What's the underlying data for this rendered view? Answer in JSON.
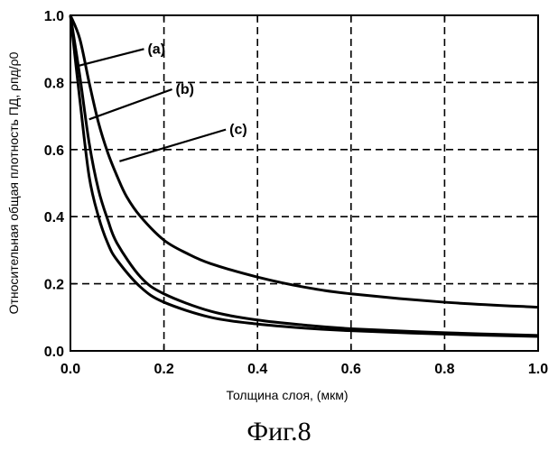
{
  "chart_data": {
    "type": "line",
    "title": "",
    "xlabel": "Толщина слоя, (мкм)",
    "ylabel": "Относительная общая плотность ПД, ρпд/ρ0",
    "xlim": [
      0.0,
      1.0
    ],
    "ylim": [
      0.0,
      1.0
    ],
    "xticks": [
      "0.0",
      "0.2",
      "0.4",
      "0.6",
      "0.8",
      "1.0"
    ],
    "yticks": [
      "0.0",
      "0.2",
      "0.4",
      "0.6",
      "0.8",
      "1.0"
    ],
    "grid": true,
    "series": [
      {
        "name": "(a)",
        "x": [
          0.0,
          0.02,
          0.04,
          0.06,
          0.08,
          0.1,
          0.15,
          0.2,
          0.3,
          0.4,
          0.5,
          0.6,
          0.8,
          1.0
        ],
        "y": [
          1.0,
          0.75,
          0.52,
          0.4,
          0.32,
          0.27,
          0.19,
          0.145,
          0.1,
          0.08,
          0.068,
          0.06,
          0.05,
          0.043
        ]
      },
      {
        "name": "(b)",
        "x": [
          0.0,
          0.02,
          0.04,
          0.06,
          0.08,
          0.1,
          0.15,
          0.2,
          0.3,
          0.4,
          0.5,
          0.6,
          0.8,
          1.0
        ],
        "y": [
          1.0,
          0.82,
          0.62,
          0.48,
          0.39,
          0.32,
          0.22,
          0.17,
          0.118,
          0.092,
          0.077,
          0.066,
          0.054,
          0.046
        ]
      },
      {
        "name": "(c)",
        "x": [
          0.0,
          0.02,
          0.04,
          0.06,
          0.08,
          0.1,
          0.12,
          0.15,
          0.2,
          0.25,
          0.3,
          0.4,
          0.5,
          0.6,
          0.8,
          1.0
        ],
        "y": [
          1.0,
          0.93,
          0.8,
          0.68,
          0.59,
          0.52,
          0.46,
          0.4,
          0.33,
          0.29,
          0.26,
          0.22,
          0.19,
          0.17,
          0.145,
          0.13
        ]
      }
    ],
    "annotations": [
      {
        "label": "(a)",
        "target_series": "(a)"
      },
      {
        "label": "(b)",
        "target_series": "(b)"
      },
      {
        "label": "(c)",
        "target_series": "(c)"
      }
    ]
  },
  "caption": "Фиг.8"
}
